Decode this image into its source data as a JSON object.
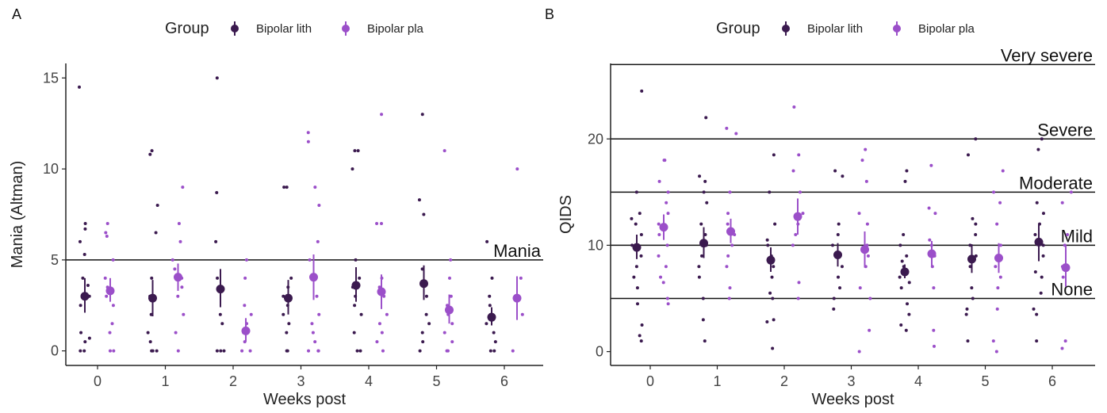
{
  "colors": {
    "lith": "#3b1a4f",
    "pla": "#9b4fc9"
  },
  "legend": {
    "title": "Group",
    "items": [
      {
        "label": "Bipolar lith",
        "color": "#3b1a4f"
      },
      {
        "label": "Bipolar pla",
        "color": "#9b4fc9"
      }
    ]
  },
  "chart_data": [
    {
      "panel": "A",
      "type": "scatter",
      "xlabel": "Weeks post",
      "ylabel": "Mania (Altman)",
      "x_categories": [
        "0",
        "1",
        "2",
        "3",
        "4",
        "5",
        "6"
      ],
      "ylim": [
        -0.8,
        15.8
      ],
      "yticks": [
        0,
        5,
        10,
        15
      ],
      "reference_lines": [
        {
          "y": 5,
          "label": "Mania"
        }
      ],
      "series": [
        {
          "name": "Bipolar lith",
          "means": [
            3.0,
            2.9,
            3.4,
            2.9,
            3.6,
            3.7,
            1.85
          ],
          "ci": [
            [
              2.1,
              4.0
            ],
            [
              1.9,
              3.9
            ],
            [
              2.4,
              4.5
            ],
            [
              2.0,
              3.9
            ],
            [
              2.7,
              4.6
            ],
            [
              2.8,
              4.7
            ],
            [
              1.4,
              2.4
            ]
          ],
          "points": [
            [
              14.5,
              7,
              6.7,
              6,
              5.3,
              4,
              3.6,
              3,
              2.5,
              1,
              0.7,
              0.5,
              0,
              0
            ],
            [
              11,
              10.8,
              8,
              6.5,
              4,
              3,
              2,
              1,
              0.5,
              0,
              0,
              0
            ],
            [
              15,
              8.7,
              6,
              4,
              3.5,
              2,
              1.5,
              0,
              0,
              0
            ],
            [
              9,
              9,
              4,
              3.5,
              3,
              2.5,
              2,
              1.5,
              1,
              0,
              0
            ],
            [
              11,
              11,
              10,
              5,
              4,
              3.5,
              3,
              2.5,
              2,
              1,
              0,
              0
            ],
            [
              13,
              8.3,
              7.5,
              4.5,
              3,
              2,
              1.5,
              1,
              0.5,
              0
            ],
            [
              6,
              4,
              3,
              2.5,
              2,
              1.5,
              1,
              0.5,
              0,
              0
            ]
          ]
        },
        {
          "name": "Bipolar pla",
          "means": [
            3.3,
            4.05,
            1.1,
            4.05,
            3.25,
            2.25,
            2.9
          ],
          "ci": [
            [
              2.7,
              4.0
            ],
            [
              3.3,
              4.8
            ],
            [
              0.5,
              1.8
            ],
            [
              2.8,
              5.3
            ],
            [
              2.3,
              4.2
            ],
            [
              1.5,
              3.1
            ],
            [
              1.7,
              4.1
            ]
          ],
          "points": [
            [
              7,
              6.5,
              6.3,
              5,
              4,
              3.5,
              3,
              2.5,
              1.5,
              1,
              0,
              0
            ],
            [
              9,
              7,
              6,
              5,
              4.5,
              4,
              3.5,
              3,
              2,
              1,
              0
            ],
            [
              5,
              4,
              2.5,
              2,
              1.5,
              1,
              0.5,
              0,
              0
            ],
            [
              12,
              11.5,
              9,
              8,
              6,
              5,
              4,
              3,
              2,
              1.5,
              1,
              0.5,
              0,
              0,
              0
            ],
            [
              13,
              7,
              7,
              4,
              3.5,
              3,
              2,
              1.5,
              1,
              0.5,
              0
            ],
            [
              11,
              5,
              4,
              3,
              2.5,
              2,
              1.5,
              1,
              0.5,
              0,
              0
            ],
            [
              10,
              4,
              3,
              2,
              0
            ]
          ]
        }
      ]
    },
    {
      "panel": "B",
      "type": "scatter",
      "xlabel": "Weeks post",
      "ylabel": "QIDS",
      "x_categories": [
        "0",
        "1",
        "2",
        "3",
        "4",
        "5",
        "6"
      ],
      "ylim": [
        -1.3,
        27.1
      ],
      "yticks": [
        0,
        10,
        20
      ],
      "reference_lines": [
        {
          "y": 27,
          "label": "Very severe"
        },
        {
          "y": 20,
          "label": "Severe"
        },
        {
          "y": 15,
          "label": "Moderate"
        },
        {
          "y": 10,
          "label": "Mild"
        },
        {
          "y": 5,
          "label": "None"
        }
      ],
      "series": [
        {
          "name": "Bipolar lith",
          "means": [
            9.8,
            10.2,
            8.6,
            9.1,
            7.5,
            8.7,
            10.3
          ],
          "ci": [
            [
              8.7,
              11.0
            ],
            [
              8.8,
              11.7
            ],
            [
              7.5,
              9.8
            ],
            [
              8.0,
              10.2
            ],
            [
              6.9,
              8.2
            ],
            [
              7.4,
              10.1
            ],
            [
              8.5,
              12.0
            ]
          ],
          "points": [
            [
              24.5,
              15,
              13,
              12.5,
              12,
              11,
              10,
              9,
              8,
              7,
              6,
              4.5,
              2.5,
              1.5,
              1
            ],
            [
              22,
              16.5,
              16,
              15,
              14,
              12,
              11,
              10,
              9,
              8,
              7,
              5,
              3,
              1
            ],
            [
              18.5,
              15,
              12,
              10.5,
              10,
              9,
              8,
              7,
              5.5,
              5,
              3,
              2.8,
              0.3
            ],
            [
              17,
              16.5,
              12,
              11,
              10,
              9,
              8,
              7,
              6,
              5,
              4
            ],
            [
              17,
              16,
              11,
              10,
              9,
              8.5,
              8,
              7.5,
              7,
              6.5,
              6,
              4.5,
              3.5,
              2.5,
              2
            ],
            [
              20,
              18.5,
              12.5,
              12,
              11,
              10,
              9,
              8,
              6,
              5,
              4,
              3.5,
              1
            ],
            [
              20,
              19,
              14,
              13,
              12,
              11,
              10,
              9,
              7.5,
              7,
              5.5,
              4,
              3.5,
              1
            ]
          ]
        },
        {
          "name": "Bipolar pla",
          "means": [
            11.7,
            11.3,
            12.7,
            9.6,
            9.2,
            8.8,
            7.9
          ],
          "ci": [
            [
              10.5,
              12.9
            ],
            [
              10.2,
              12.5
            ],
            [
              11.0,
              14.4
            ],
            [
              7.9,
              11.3
            ],
            [
              8.0,
              10.4
            ],
            [
              7.4,
              10.2
            ],
            [
              6.1,
              10.0
            ]
          ],
          "points": [
            [
              18,
              18,
              16,
              15,
              14,
              13,
              12,
              11,
              10,
              9,
              8,
              7,
              6.5,
              5,
              4.5
            ],
            [
              21,
              20.5,
              15,
              13,
              12,
              11,
              10,
              9,
              8,
              6,
              5
            ],
            [
              23,
              18.5,
              17,
              15,
              13,
              12,
              11,
              10,
              6.5,
              5
            ],
            [
              19,
              18,
              16,
              13,
              12,
              10,
              9,
              8,
              6,
              5,
              2,
              0
            ],
            [
              17.5,
              13.5,
              13,
              10.5,
              10,
              9,
              8,
              6,
              2,
              0.5
            ],
            [
              17,
              15,
              14,
              12,
              10,
              9,
              8,
              7,
              6,
              4,
              1,
              0
            ],
            [
              15,
              14,
              11,
              10,
              8,
              7,
              1,
              0.3
            ]
          ]
        }
      ]
    }
  ]
}
